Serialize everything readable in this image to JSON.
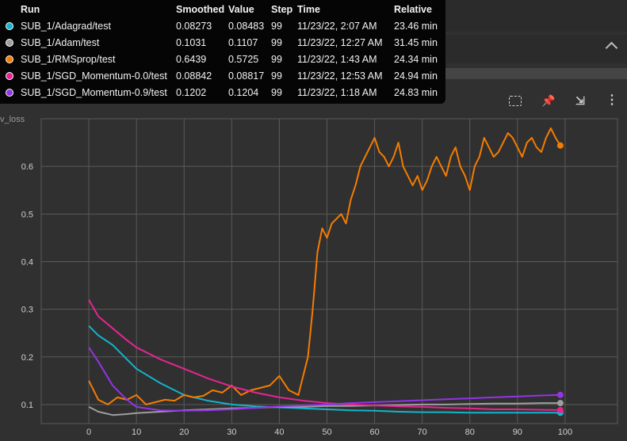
{
  "card": {
    "title": "v_loss"
  },
  "toolbar": [
    {
      "id": "tb-fit",
      "name": "fit-domain-icon",
      "glyph": ""
    },
    {
      "id": "tb-pin",
      "name": "pin-icon",
      "glyph": "📌"
    },
    {
      "id": "tb-collapse",
      "name": "collapse-icon",
      "glyph": "⇲"
    },
    {
      "id": "tb-more",
      "name": "more-vert-icon",
      "glyph": "⋮"
    }
  ],
  "tooltip": {
    "headers": {
      "run": "Run",
      "smoothed": "Smoothed",
      "value": "Value",
      "step": "Step",
      "time": "Time",
      "relative": "Relative"
    },
    "rows": [
      {
        "run": "SUB_1/Adagrad/test",
        "smoothed": "0.08273",
        "value": "0.08483",
        "step": "99",
        "time": "11/23/22, 2:07 AM",
        "relative": "23.46 min",
        "color": "#12b5cb"
      },
      {
        "run": "SUB_1/Adam/test",
        "smoothed": "0.1031",
        "value": "0.1107",
        "step": "99",
        "time": "11/23/22, 12:27 AM",
        "relative": "31.45 min",
        "color": "#9e9e9e"
      },
      {
        "run": "SUB_1/RMSprop/test",
        "smoothed": "0.6439",
        "value": "0.5725",
        "step": "99",
        "time": "11/23/22, 1:43 AM",
        "relative": "24.34 min",
        "color": "#f57c00"
      },
      {
        "run": "SUB_1/SGD_Momentum-0.0/test",
        "smoothed": "0.08842",
        "value": "0.08817",
        "step": "99",
        "time": "11/23/22, 12:53 AM",
        "relative": "24.94 min",
        "color": "#e52592"
      },
      {
        "run": "SUB_1/SGD_Momentum-0.9/test",
        "smoothed": "0.1202",
        "value": "0.1204",
        "step": "99",
        "time": "11/23/22, 1:18 AM",
        "relative": "24.83 min",
        "color": "#9334e6"
      }
    ]
  },
  "chart_data": {
    "type": "line",
    "title": "v_loss",
    "xlabel": "",
    "ylabel": "",
    "xlim": [
      -10,
      111
    ],
    "ylim": [
      0.06,
      0.7
    ],
    "xticks": [
      0,
      10,
      20,
      30,
      40,
      50,
      60,
      70,
      80,
      90,
      100
    ],
    "yticks": [
      0.1,
      0.2,
      0.3,
      0.4,
      0.5,
      0.6
    ],
    "grid": true,
    "series": [
      {
        "name": "SUB_1/Adagrad/test",
        "color": "#12b5cb",
        "x": [
          0,
          2,
          5,
          8,
          10,
          15,
          20,
          25,
          30,
          35,
          40,
          45,
          50,
          55,
          60,
          65,
          70,
          75,
          80,
          85,
          90,
          95,
          99
        ],
        "y": [
          0.265,
          0.245,
          0.225,
          0.195,
          0.175,
          0.145,
          0.12,
          0.108,
          0.1,
          0.096,
          0.094,
          0.092,
          0.09,
          0.088,
          0.087,
          0.085,
          0.084,
          0.084,
          0.083,
          0.083,
          0.083,
          0.083,
          0.0827
        ]
      },
      {
        "name": "SUB_1/Adam/test",
        "color": "#9e9e9e",
        "x": [
          0,
          2,
          5,
          8,
          10,
          15,
          20,
          25,
          30,
          35,
          40,
          45,
          50,
          55,
          60,
          65,
          70,
          75,
          80,
          85,
          90,
          95,
          99
        ],
        "y": [
          0.095,
          0.085,
          0.078,
          0.08,
          0.082,
          0.085,
          0.088,
          0.09,
          0.092,
          0.093,
          0.095,
          0.095,
          0.097,
          0.097,
          0.098,
          0.099,
          0.1,
          0.1,
          0.101,
          0.102,
          0.102,
          0.103,
          0.1031
        ]
      },
      {
        "name": "SUB_1/RMSprop/test",
        "color": "#f57c00",
        "x": [
          0,
          2,
          4,
          6,
          8,
          10,
          12,
          14,
          16,
          18,
          20,
          22,
          24,
          26,
          28,
          30,
          32,
          34,
          36,
          38,
          40,
          42,
          44,
          46,
          47,
          48,
          49,
          50,
          51,
          52,
          53,
          54,
          55,
          56,
          57,
          58,
          59,
          60,
          61,
          62,
          63,
          64,
          65,
          66,
          67,
          68,
          69,
          70,
          71,
          72,
          73,
          74,
          75,
          76,
          77,
          78,
          79,
          80,
          81,
          82,
          83,
          84,
          85,
          86,
          87,
          88,
          89,
          90,
          91,
          92,
          93,
          94,
          95,
          96,
          97,
          98,
          99
        ],
        "y": [
          0.15,
          0.11,
          0.1,
          0.115,
          0.11,
          0.12,
          0.1,
          0.105,
          0.11,
          0.108,
          0.12,
          0.115,
          0.118,
          0.13,
          0.125,
          0.14,
          0.12,
          0.13,
          0.135,
          0.14,
          0.16,
          0.13,
          0.12,
          0.2,
          0.3,
          0.42,
          0.47,
          0.45,
          0.48,
          0.49,
          0.5,
          0.48,
          0.53,
          0.56,
          0.6,
          0.62,
          0.64,
          0.66,
          0.63,
          0.62,
          0.6,
          0.62,
          0.65,
          0.6,
          0.58,
          0.56,
          0.58,
          0.55,
          0.57,
          0.6,
          0.62,
          0.6,
          0.58,
          0.62,
          0.64,
          0.6,
          0.58,
          0.55,
          0.6,
          0.62,
          0.66,
          0.64,
          0.62,
          0.63,
          0.65,
          0.67,
          0.66,
          0.64,
          0.62,
          0.65,
          0.66,
          0.64,
          0.63,
          0.66,
          0.68,
          0.66,
          0.6439
        ]
      },
      {
        "name": "SUB_1/SGD_Momentum-0.0/test",
        "color": "#e52592",
        "x": [
          0,
          2,
          5,
          8,
          10,
          15,
          20,
          25,
          30,
          35,
          40,
          45,
          50,
          55,
          60,
          65,
          70,
          75,
          80,
          85,
          90,
          95,
          99
        ],
        "y": [
          0.32,
          0.285,
          0.26,
          0.235,
          0.22,
          0.195,
          0.175,
          0.155,
          0.138,
          0.125,
          0.115,
          0.108,
          0.103,
          0.1,
          0.098,
          0.096,
          0.095,
          0.093,
          0.092,
          0.09,
          0.09,
          0.089,
          0.0884
        ]
      },
      {
        "name": "SUB_1/SGD_Momentum-0.9/test",
        "color": "#9334e6",
        "x": [
          0,
          2,
          5,
          8,
          10,
          15,
          20,
          25,
          30,
          35,
          40,
          45,
          50,
          55,
          60,
          65,
          70,
          75,
          80,
          85,
          90,
          95,
          99
        ],
        "y": [
          0.22,
          0.19,
          0.14,
          0.11,
          0.095,
          0.088,
          0.087,
          0.088,
          0.09,
          0.093,
          0.096,
          0.098,
          0.1,
          0.103,
          0.105,
          0.107,
          0.109,
          0.111,
          0.113,
          0.115,
          0.117,
          0.119,
          0.1202
        ]
      }
    ]
  }
}
